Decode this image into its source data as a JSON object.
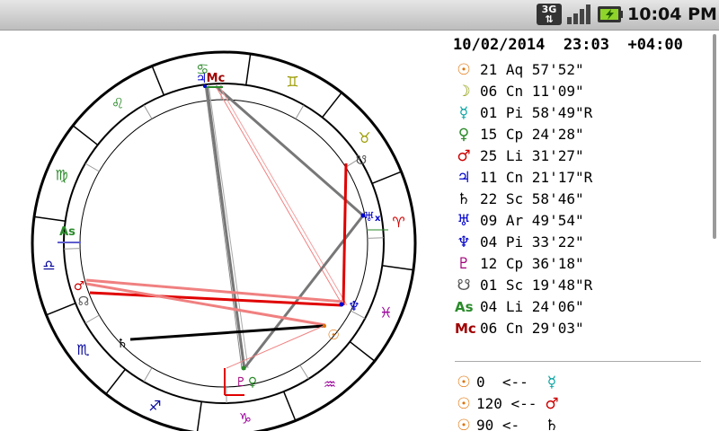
{
  "status_bar": {
    "network": "3G",
    "time": "10:04 PM"
  },
  "chart_wheel": {
    "signs": [
      {
        "name": "cancer",
        "glyph": "♋",
        "color": "#2a8a2a"
      },
      {
        "name": "gemini",
        "glyph": "♊",
        "color": "#9a9a00"
      },
      {
        "name": "taurus",
        "glyph": "♉",
        "color": "#9a9a00"
      },
      {
        "name": "aries",
        "glyph": "♈",
        "color": "#d00000"
      },
      {
        "name": "pisces",
        "glyph": "♓",
        "color": "#9a009a"
      },
      {
        "name": "aquarius",
        "glyph": "♒",
        "color": "#9a009a"
      },
      {
        "name": "capricorn",
        "glyph": "♑",
        "color": "#9a009a"
      },
      {
        "name": "sagittarius",
        "glyph": "♐",
        "color": "#000099"
      },
      {
        "name": "scorpio",
        "glyph": "♏",
        "color": "#000099"
      },
      {
        "name": "libra",
        "glyph": "♎",
        "color": "#000099"
      },
      {
        "name": "virgo",
        "glyph": "♍",
        "color": "#2a8a2a"
      },
      {
        "name": "leo",
        "glyph": "♌",
        "color": "#2a8a2a"
      }
    ],
    "ascendant_label": "As",
    "midheaven_label": "Mc",
    "uranus_label": "♅",
    "uranus_suffix": "x",
    "markers": [
      {
        "name": "jupiter",
        "glyph": "♃",
        "color": "#0000cc"
      },
      {
        "name": "mc",
        "glyph": "Mc",
        "color": "#a00000"
      },
      {
        "name": "south-node",
        "glyph": "☋",
        "color": "#555555"
      },
      {
        "name": "uranus",
        "glyph": "♅",
        "color": "#0000cc"
      },
      {
        "name": "neptune",
        "glyph": "♆",
        "color": "#0000cc"
      },
      {
        "name": "sun",
        "glyph": "☉",
        "color": "#e07000"
      },
      {
        "name": "pluto",
        "glyph": "♇",
        "color": "#a0007a"
      },
      {
        "name": "venus",
        "glyph": "♀",
        "color": "#2a8a2a"
      },
      {
        "name": "saturn",
        "glyph": "♄",
        "color": "#000000"
      },
      {
        "name": "mars",
        "glyph": "♂",
        "color": "#cc0000"
      },
      {
        "name": "node",
        "glyph": "☊",
        "color": "#555555"
      },
      {
        "name": "ascendant",
        "glyph": "As",
        "color": "#2a8a2a"
      }
    ]
  },
  "info": {
    "datetime": "10/02/2014  23:03  +04:00",
    "planets": [
      {
        "name": "sun",
        "glyph": "☉",
        "color": "#e07000",
        "text": "21 Aq 57'52\""
      },
      {
        "name": "moon",
        "glyph": "☽",
        "color": "#8a9a00",
        "text": "06 Cn 11'09\""
      },
      {
        "name": "mercury",
        "glyph": "☿",
        "color": "#00a0a0",
        "text": "01 Pi 58'49\"R"
      },
      {
        "name": "venus",
        "glyph": "♀",
        "color": "#2a8a2a",
        "text": "15 Cp 24'28\""
      },
      {
        "name": "mars",
        "glyph": "♂",
        "color": "#cc0000",
        "text": "25 Li 31'27\""
      },
      {
        "name": "jupiter",
        "glyph": "♃",
        "color": "#0000cc",
        "text": "11 Cn 21'17\"R"
      },
      {
        "name": "saturn",
        "glyph": "♄",
        "color": "#000000",
        "text": "22 Sc 58'46\""
      },
      {
        "name": "uranus",
        "glyph": "♅",
        "color": "#0000cc",
        "text": "09 Ar 49'54\""
      },
      {
        "name": "neptune",
        "glyph": "♆",
        "color": "#0000cc",
        "text": "04 Pi 33'22\""
      },
      {
        "name": "pluto",
        "glyph": "♇",
        "color": "#a0007a",
        "text": "12 Cp 36'18\""
      },
      {
        "name": "south-node",
        "glyph": "☋",
        "color": "#555555",
        "text": "01 Sc 19'48\"R"
      },
      {
        "name": "ascendant",
        "glyph": "As",
        "color": "#2a8a2a",
        "text": "04 Li 24'06\""
      },
      {
        "name": "midheaven",
        "glyph": "Mc",
        "color": "#a00000",
        "text": "06 Cn 29'03\""
      }
    ],
    "aspects": [
      {
        "g1": "☉",
        "c1": "#e07000",
        "text": "0  <--",
        "g2": "☿",
        "c2": "#00a0a0"
      },
      {
        "g1": "☉",
        "c1": "#e07000",
        "text": "120 <--",
        "g2": "♂",
        "c2": "#cc0000"
      },
      {
        "g1": "☉",
        "c1": "#e07000",
        "text": "90 <-",
        "g2": "♄",
        "c2": "#000000"
      }
    ]
  }
}
